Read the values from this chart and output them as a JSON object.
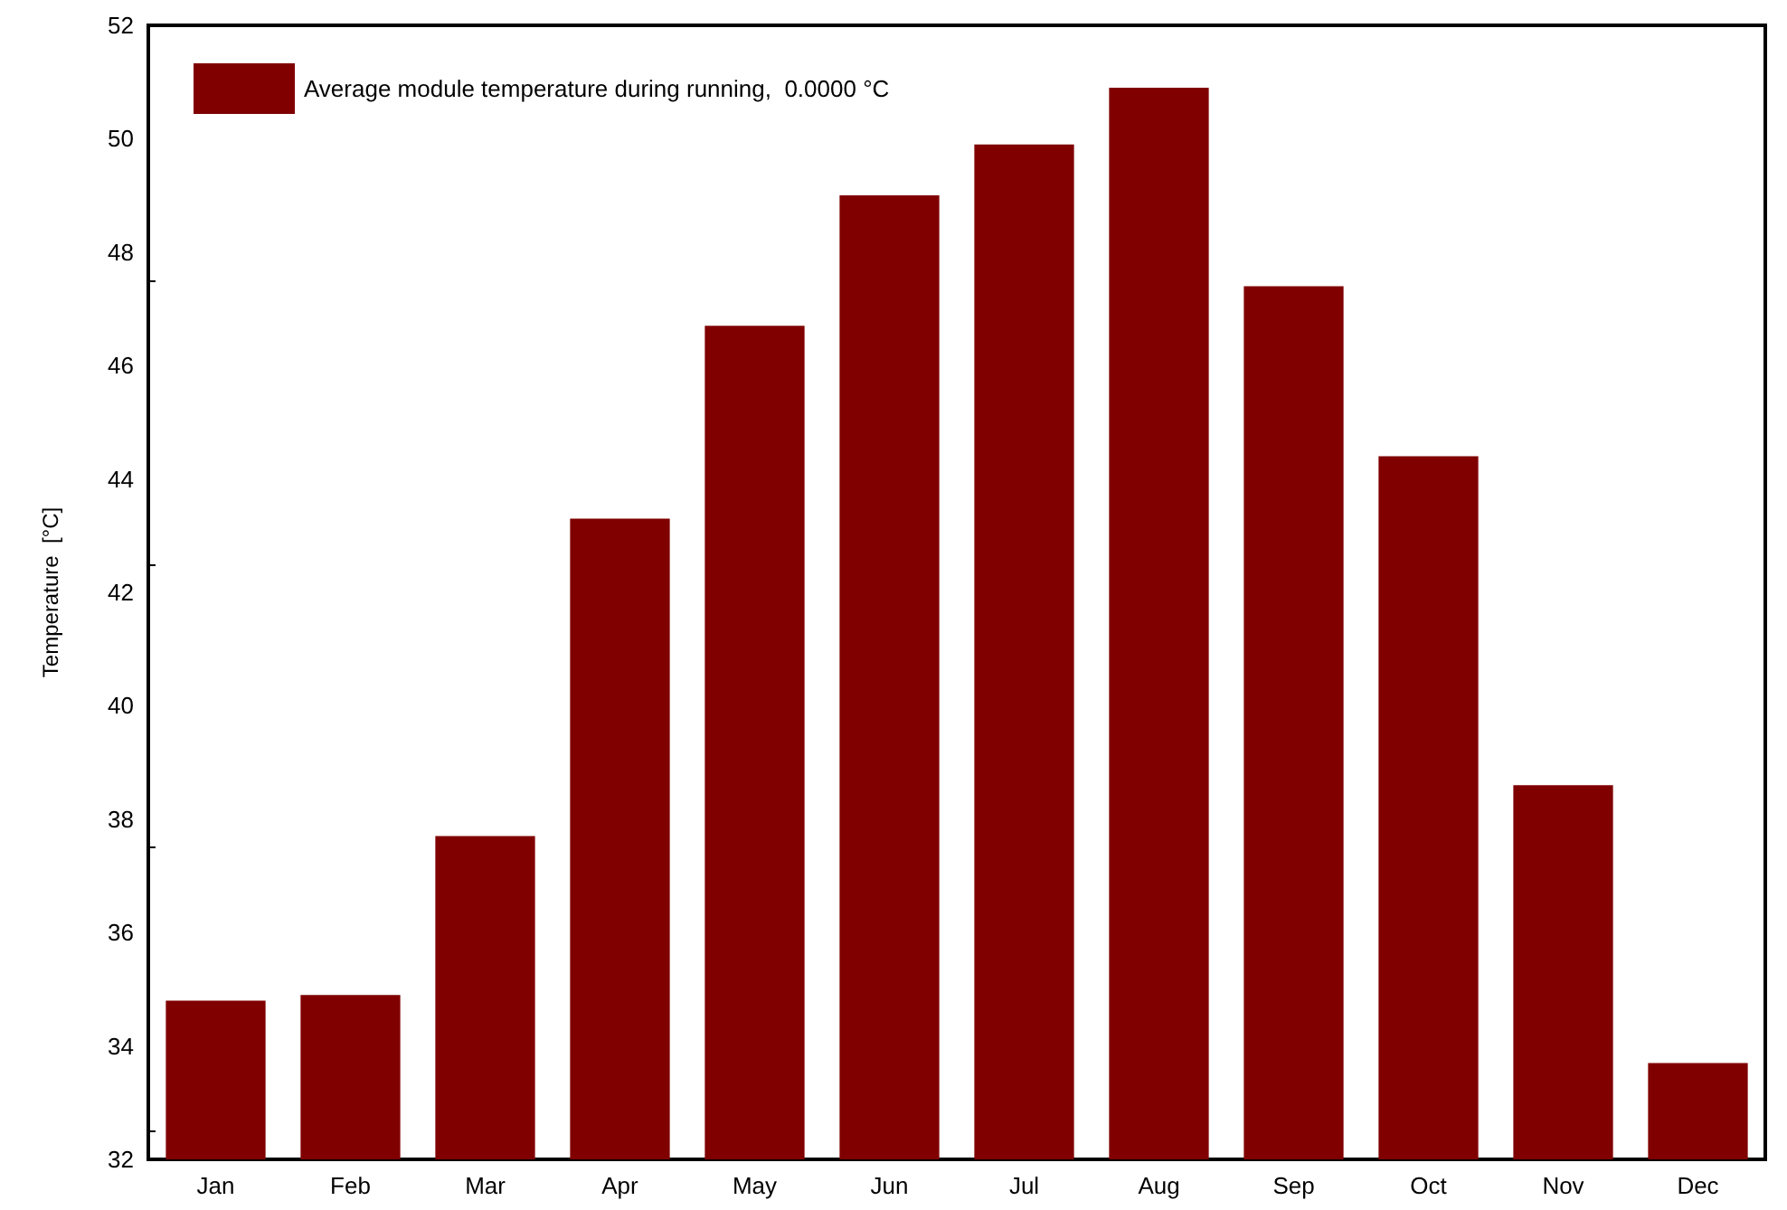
{
  "chart_data": {
    "type": "bar",
    "ylabel": "Temperature  [°C]",
    "categories": [
      "Jan",
      "Feb",
      "Mar",
      "Apr",
      "May",
      "Jun",
      "Jul",
      "Aug",
      "Sep",
      "Oct",
      "Nov",
      "Dec"
    ],
    "series": [
      {
        "name": "Average module temperature during running,  0.0000 °C",
        "color": "#800000",
        "values": [
          34.8,
          34.9,
          37.7,
          43.3,
          46.7,
          49.0,
          49.9,
          50.9,
          47.4,
          44.4,
          38.6,
          33.7
        ]
      }
    ],
    "ylim": [
      32,
      52
    ],
    "yticks": [
      32,
      34,
      36,
      38,
      40,
      42,
      44,
      46,
      48,
      50,
      52
    ],
    "grid": false,
    "legend": "top left"
  }
}
